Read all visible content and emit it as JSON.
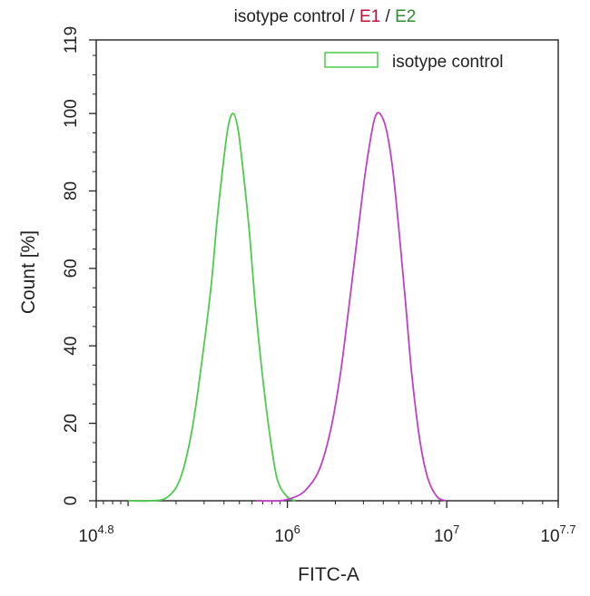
{
  "chart_data": {
    "type": "line",
    "title_parts": [
      {
        "text": "isotype control",
        "color": "#222222"
      },
      {
        "text": " / ",
        "color": "#222222"
      },
      {
        "text": "E1",
        "color": "#c0103a"
      },
      {
        "text": " / ",
        "color": "#222222"
      },
      {
        "text": "E2",
        "color": "#2e8b2e"
      }
    ],
    "xlabel": "FITC-A",
    "ylabel": "Count  [%]",
    "x_scale": "log",
    "xlim_exponent": [
      4.8,
      7.7
    ],
    "ylim": [
      0,
      119
    ],
    "y_ticks": [
      0,
      20,
      40,
      60,
      80,
      100,
      119
    ],
    "x_ticks": [
      {
        "exp": 4.8,
        "base": "10",
        "sup": "4.8"
      },
      {
        "exp": 6,
        "base": "10",
        "sup": "6"
      },
      {
        "exp": 7,
        "base": "10",
        "sup": "7"
      },
      {
        "exp": 7.7,
        "base": "10",
        "sup": "7.7"
      }
    ],
    "legend": {
      "placement": "top-right",
      "entries": [
        {
          "label": "isotype control",
          "color": "#4ccc4c"
        }
      ]
    },
    "series": [
      {
        "name": "isotype control",
        "color": "#4ccc4c",
        "x_exp": [
          5.0,
          5.15,
          5.25,
          5.33,
          5.4,
          5.46,
          5.52,
          5.56,
          5.6,
          5.63,
          5.66,
          5.69,
          5.72,
          5.76,
          5.8,
          5.85,
          5.9,
          5.94,
          6.0,
          6.05
        ],
        "y": [
          0,
          0,
          1,
          6,
          18,
          35,
          55,
          73,
          88,
          97,
          100,
          96,
          86,
          70,
          50,
          30,
          14,
          5,
          1,
          0
        ]
      },
      {
        "color": "#c040c8",
        "x_exp": [
          5.8,
          5.95,
          6.05,
          6.12,
          6.2,
          6.27,
          6.33,
          6.38,
          6.43,
          6.48,
          6.52,
          6.55,
          6.58,
          6.62,
          6.66,
          6.7,
          6.74,
          6.78,
          6.83,
          6.88,
          6.94,
          7.0
        ],
        "y": [
          0,
          0,
          1,
          3,
          8,
          18,
          32,
          48,
          65,
          82,
          93,
          99,
          100,
          96,
          86,
          70,
          52,
          33,
          16,
          6,
          1,
          0
        ]
      }
    ]
  }
}
